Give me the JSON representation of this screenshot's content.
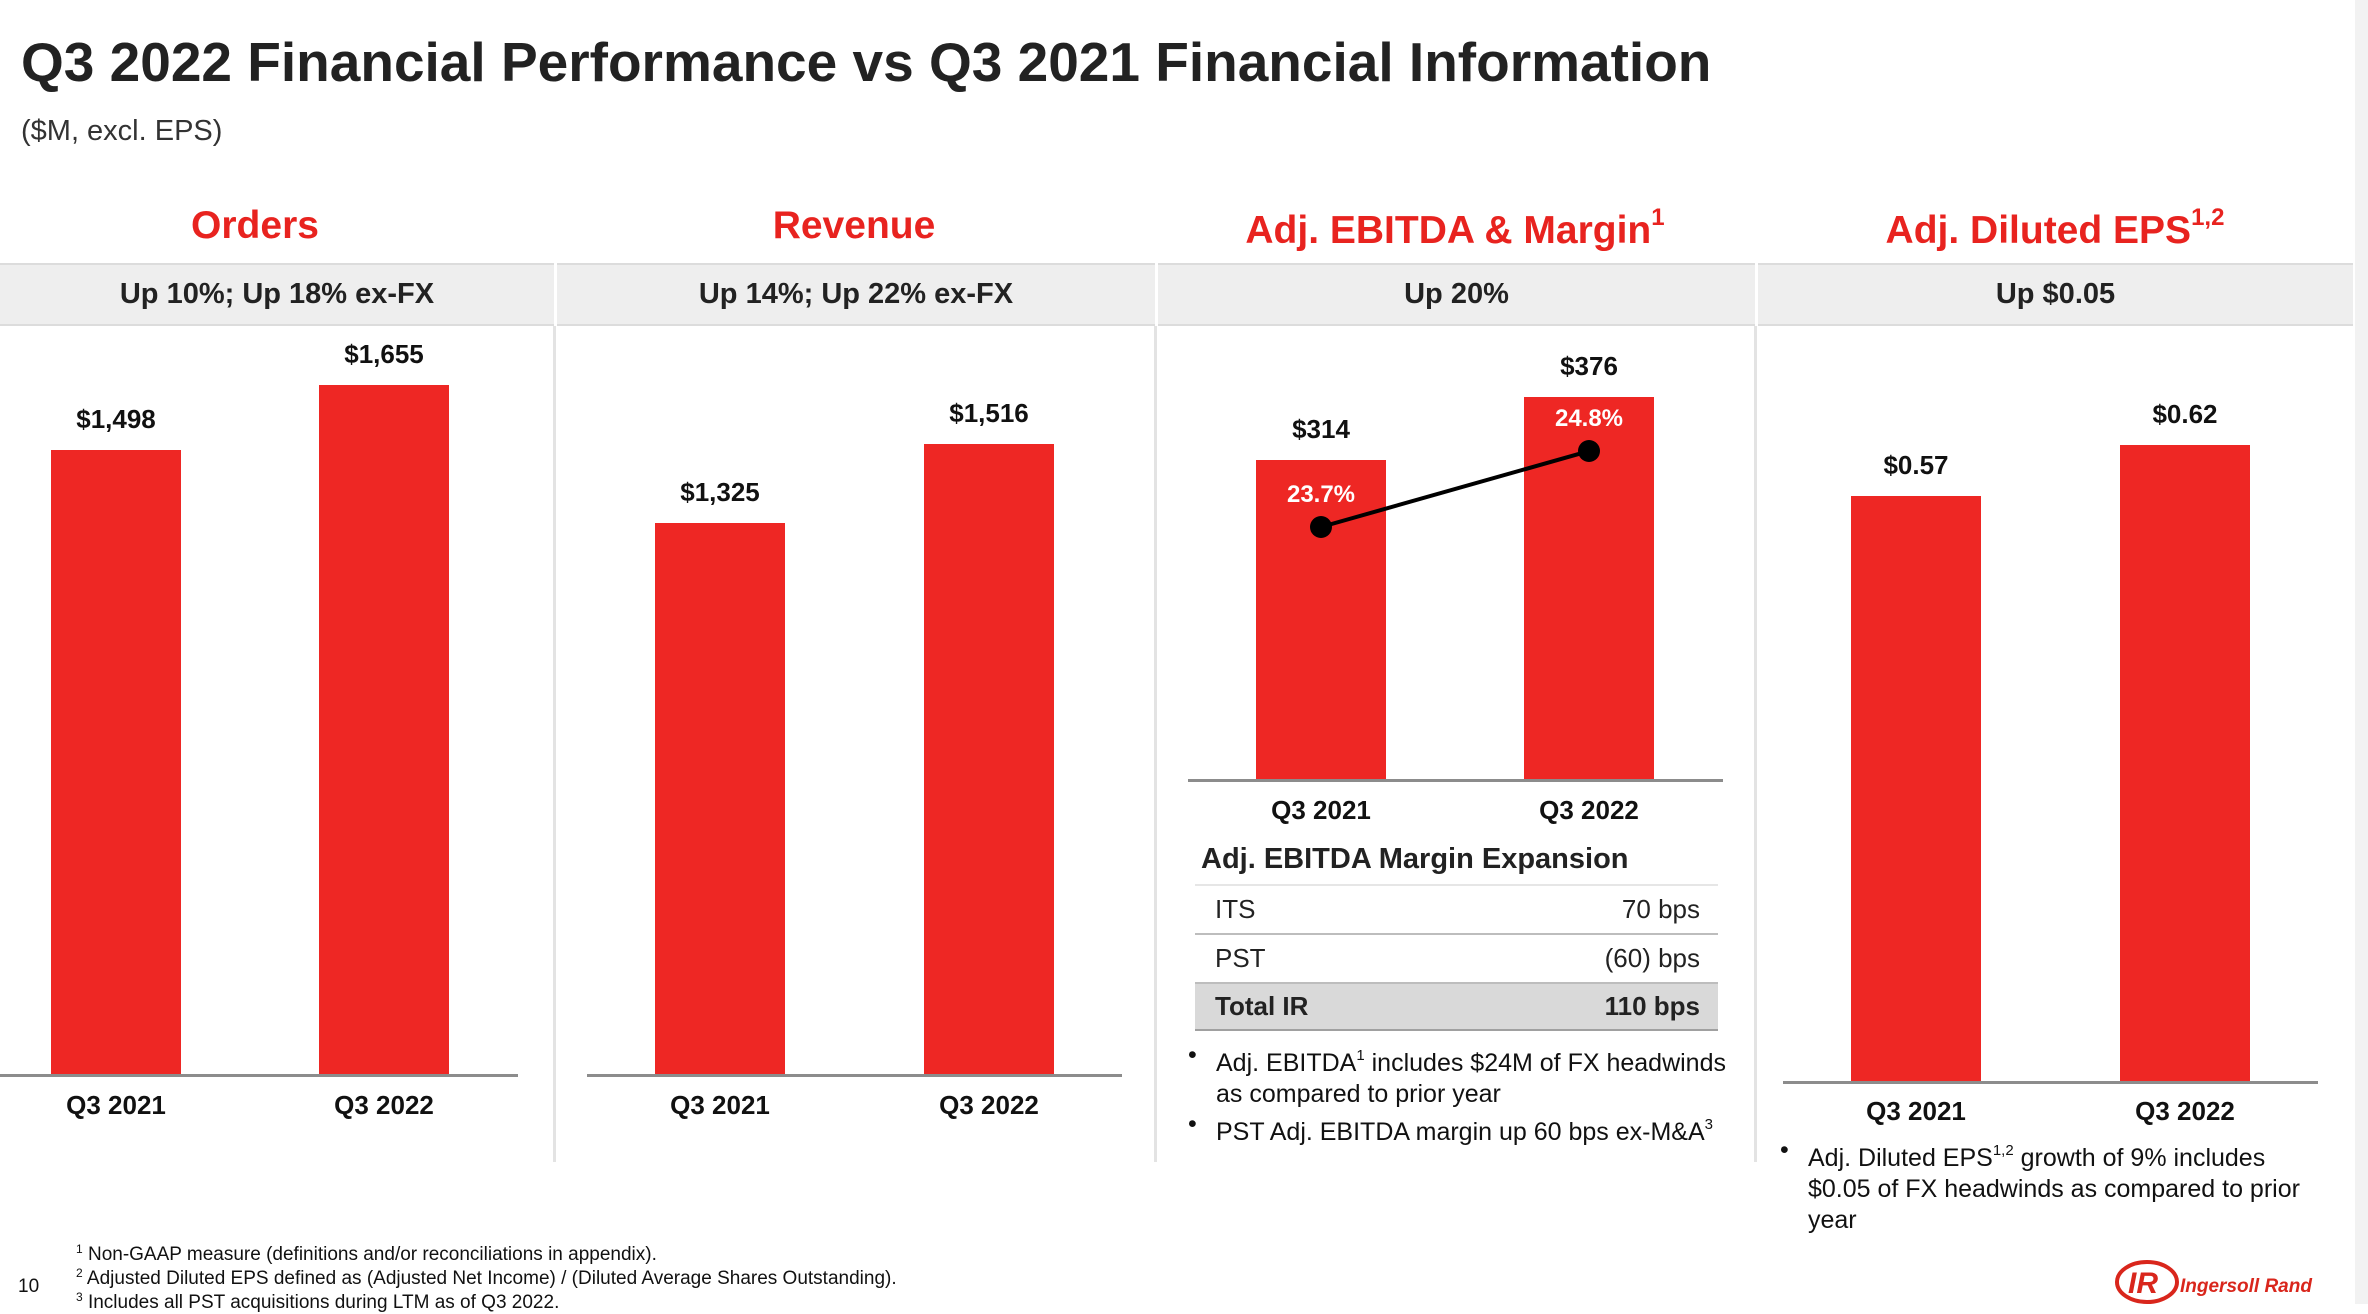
{
  "title": "Q3 2022 Financial Performance vs Q3 2021 Financial Information",
  "subtitle": "($M, excl. EPS)",
  "colors": {
    "accent": "#e8231f",
    "bar": "#ee2724",
    "band": "#eeeeee",
    "total_row": "#d9d9d9"
  },
  "sections": [
    {
      "heading": "Orders",
      "sup": "",
      "summary": "Up 10%; Up 18% ex-FX"
    },
    {
      "heading": "Revenue",
      "sup": "",
      "summary": "Up 14%; Up 22% ex-FX"
    },
    {
      "heading": "Adj. EBITDA & Margin",
      "sup": "1",
      "summary": "Up 20%"
    },
    {
      "heading": "Adj. Diluted EPS",
      "sup": "1,2",
      "summary": "Up $0.05"
    }
  ],
  "chart_data": [
    {
      "type": "bar",
      "title": "Orders",
      "categories": [
        "Q3 2021",
        "Q3 2022"
      ],
      "values": [
        1498,
        1655
      ],
      "labels": [
        "$1,498",
        "$1,655"
      ]
    },
    {
      "type": "bar",
      "title": "Revenue",
      "categories": [
        "Q3 2021",
        "Q3 2022"
      ],
      "values": [
        1325,
        1516
      ],
      "labels": [
        "$1,325",
        "$1,516"
      ]
    },
    {
      "type": "bar",
      "title": "Adj. EBITDA & Margin",
      "categories": [
        "Q3 2021",
        "Q3 2022"
      ],
      "values": [
        314,
        376
      ],
      "labels": [
        "$314",
        "$376"
      ],
      "line_series": {
        "values": [
          23.7,
          24.8
        ],
        "labels": [
          "23.7%",
          "24.8%"
        ]
      }
    },
    {
      "type": "bar",
      "title": "Adj. Diluted EPS",
      "categories": [
        "Q3 2021",
        "Q3 2022"
      ],
      "values": [
        0.57,
        0.62
      ],
      "labels": [
        "$0.57",
        "$0.62"
      ]
    }
  ],
  "margin_table": {
    "heading": "Adj. EBITDA Margin Expansion",
    "rows": [
      {
        "label": "ITS",
        "value": "70 bps"
      },
      {
        "label": "PST",
        "value": "(60) bps"
      },
      {
        "label": "Total IR",
        "value": "110 bps"
      }
    ]
  },
  "ebitda_bullets": [
    {
      "pre": "Adj. EBITDA",
      "sup": "1",
      "post": " includes $24M of FX headwinds as compared to prior year"
    },
    {
      "pre": "PST Adj. EBITDA margin up 60 bps ex-M&A",
      "sup": "3",
      "post": ""
    }
  ],
  "eps_bullet": {
    "pre": "Adj. Diluted EPS",
    "sup": "1,2",
    "post": "  growth of 9% includes $0.05 of FX headwinds as compared to prior year"
  },
  "bullet_char": "•",
  "footnotes": [
    {
      "num": "1",
      "text": " Non-GAAP measure (definitions and/or reconciliations in appendix)."
    },
    {
      "num": "2",
      "text": " Adjusted Diluted EPS defined as (Adjusted Net Income) / (Diluted Average Shares Outstanding)."
    },
    {
      "num": "3",
      "text": " Includes all PST acquisitions during LTM as of Q3 2022."
    }
  ],
  "page_number": "10",
  "logo": {
    "mark": "IR",
    "text": "Ingersoll Rand"
  }
}
